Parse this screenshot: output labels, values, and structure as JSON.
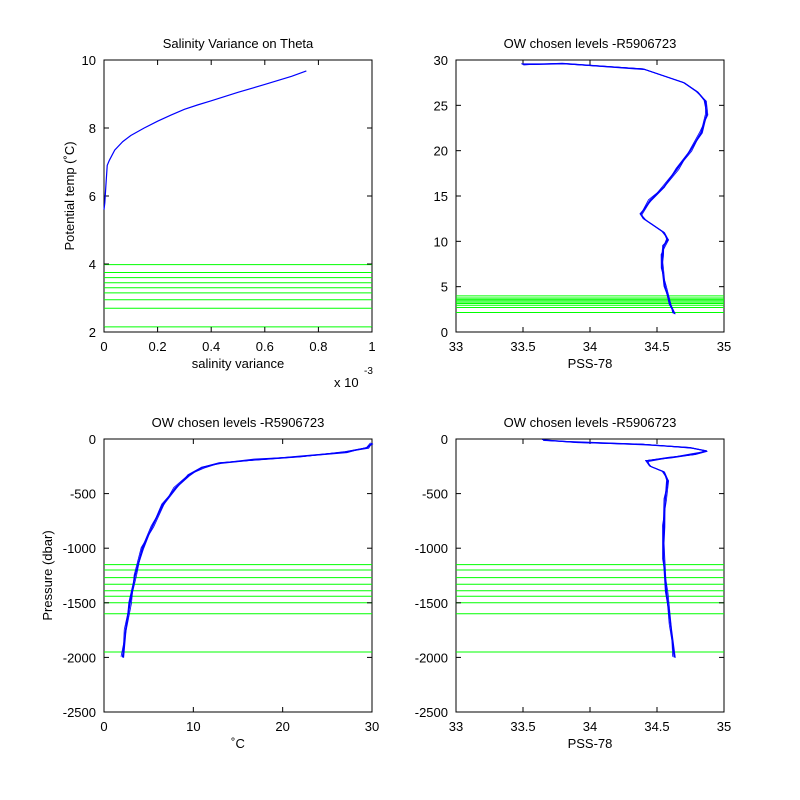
{
  "chart_data": [
    {
      "type": "line",
      "title": "Salinity Variance on Theta",
      "xlabel": "salinity variance",
      "ylabel": "Potential temp (˚C)",
      "x_multiplier": "x 10",
      "x_exponent": "-3",
      "xlim": [
        0,
        1
      ],
      "ylim": [
        2,
        10
      ],
      "xticks": [
        "0",
        "0.2",
        "0.4",
        "0.6",
        "0.8",
        "1"
      ],
      "yticks": [
        "2",
        "4",
        "6",
        "8",
        "10"
      ],
      "xtick_values": [
        0,
        0.2,
        0.4,
        0.6,
        0.8,
        1
      ],
      "ytick_values": [
        2,
        4,
        6,
        8,
        10
      ],
      "chosen_levels": [
        2.15,
        2.7,
        2.95,
        3.15,
        3.3,
        3.45,
        3.6,
        3.75,
        3.98
      ],
      "series": [
        {
          "color": "#0000ff",
          "x": [
            0.0,
            0.003,
            0.007,
            0.012,
            0.02,
            0.04,
            0.07,
            0.1,
            0.15,
            0.2,
            0.25,
            0.3,
            0.35,
            0.4,
            0.5,
            0.6,
            0.7,
            0.755
          ],
          "y": [
            5.6,
            5.8,
            6.3,
            6.9,
            7.05,
            7.35,
            7.6,
            7.78,
            8.0,
            8.2,
            8.38,
            8.55,
            8.68,
            8.8,
            9.05,
            9.28,
            9.52,
            9.68
          ]
        }
      ]
    },
    {
      "type": "line",
      "title": "OW chosen levels -R5906723",
      "xlabel": "PSS-78",
      "ylabel": "",
      "xlim": [
        33,
        35
      ],
      "ylim": [
        0,
        30
      ],
      "xticks": [
        "33",
        "33.5",
        "34",
        "34.5",
        "35"
      ],
      "yticks": [
        "0",
        "5",
        "10",
        "15",
        "20",
        "25",
        "30"
      ],
      "xtick_values": [
        33,
        33.5,
        34,
        34.5,
        35
      ],
      "ytick_values": [
        0,
        5,
        10,
        15,
        20,
        25,
        30
      ],
      "chosen_levels": [
        2.15,
        2.7,
        2.95,
        3.15,
        3.3,
        3.45,
        3.6,
        3.75,
        3.98
      ],
      "series": [
        {
          "color": "#0000ff",
          "x": [
            34.63,
            34.6,
            34.56,
            34.54,
            34.54,
            34.55,
            34.58,
            34.55,
            34.45,
            34.4,
            34.38,
            34.45,
            34.55,
            34.65,
            34.75,
            34.83,
            34.87,
            34.86,
            34.8,
            34.7,
            34.4,
            33.8,
            33.5
          ],
          "y": [
            2.0,
            3.0,
            5.0,
            7.0,
            8.5,
            9.5,
            10.2,
            11.0,
            12.0,
            12.5,
            13.0,
            14.5,
            16.0,
            18.0,
            20.0,
            22.0,
            24.0,
            25.5,
            26.5,
            27.5,
            29.0,
            29.6,
            29.5
          ]
        }
      ]
    },
    {
      "type": "line",
      "title": "OW chosen levels -R5906723",
      "xlabel": "˚C",
      "ylabel": "Pressure (dbar)",
      "xlim": [
        0,
        30
      ],
      "ylim": [
        -2500,
        0
      ],
      "xticks": [
        "0",
        "10",
        "20",
        "30"
      ],
      "yticks": [
        "-2500",
        "-2000",
        "-1500",
        "-1000",
        "-500",
        "0"
      ],
      "xtick_values": [
        0,
        10,
        20,
        30
      ],
      "ytick_values": [
        -2500,
        -2000,
        -1500,
        -1000,
        -500,
        0
      ],
      "chosen_levels": [
        -1150,
        -1200,
        -1270,
        -1330,
        -1390,
        -1440,
        -1500,
        -1600,
        -1950
      ],
      "series": [
        {
          "color": "#0000ff",
          "x": [
            2.1,
            2.4,
            2.9,
            3.5,
            4.3,
            5.4,
            6.6,
            8.0,
            9.5,
            11.0,
            13.0,
            17.0,
            22.0,
            27.0,
            29.5,
            30.0
          ],
          "y": [
            -2000,
            -1750,
            -1500,
            -1250,
            -1000,
            -800,
            -600,
            -450,
            -330,
            -260,
            -220,
            -190,
            -160,
            -120,
            -80,
            -40
          ]
        }
      ]
    },
    {
      "type": "line",
      "title": "OW chosen levels -R5906723",
      "xlabel": "PSS-78",
      "ylabel": "",
      "xlim": [
        33,
        35
      ],
      "ylim": [
        -2500,
        0
      ],
      "xticks": [
        "33",
        "33.5",
        "34",
        "34.5",
        "35"
      ],
      "yticks": [
        "-2500",
        "-2000",
        "-1500",
        "-1000",
        "-500",
        "0"
      ],
      "xtick_values": [
        33,
        33.5,
        34,
        34.5,
        35
      ],
      "ytick_values": [
        -2500,
        -2000,
        -1500,
        -1000,
        -500,
        0
      ],
      "chosen_levels": [
        -1150,
        -1200,
        -1270,
        -1330,
        -1390,
        -1440,
        -1500,
        -1600,
        -1950
      ],
      "series": [
        {
          "color": "#0000ff",
          "x": [
            34.63,
            34.6,
            34.57,
            34.55,
            34.55,
            34.56,
            34.58,
            34.55,
            34.45,
            34.42,
            34.6,
            34.78,
            34.87,
            34.75,
            34.4,
            33.9,
            33.65
          ],
          "y": [
            -2000,
            -1700,
            -1400,
            -1100,
            -800,
            -550,
            -380,
            -300,
            -250,
            -200,
            -170,
            -140,
            -110,
            -80,
            -50,
            -30,
            -10
          ]
        }
      ]
    }
  ]
}
